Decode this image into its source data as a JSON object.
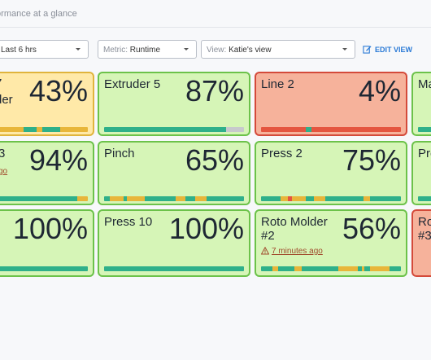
{
  "header": {
    "subtitle": "formance at a glance"
  },
  "filters": {
    "time_range": "Last 6 hrs",
    "metric_label": "Metric:",
    "metric_value": "Runtime",
    "view_label": "View:",
    "view_value": "Katie's view",
    "edit_view": "EDIT VIEW"
  },
  "colors": {
    "good": "#2fb08a",
    "warn": "#e8b63a",
    "bad": "#e4553f",
    "idle": "#c7c9cc",
    "link": "#2a7ad6"
  },
  "cards": [
    {
      "name": "der",
      "name_prefix": "",
      "pct": "43%",
      "status": "yellow"
    },
    {
      "name": "Extruder 5",
      "pct": "87%",
      "status": "green"
    },
    {
      "name": "Line 2",
      "pct": "4%",
      "status": "red"
    },
    {
      "name": "Ma",
      "pct": "",
      "status": "green"
    },
    {
      "name": "3",
      "pct": "94%",
      "status": "green",
      "ago": "go"
    },
    {
      "name": "Pinch",
      "pct": "65%",
      "status": "green"
    },
    {
      "name": "Press 2",
      "pct": "75%",
      "status": "green"
    },
    {
      "name": "Pre",
      "pct": "",
      "status": "green"
    },
    {
      "name": "",
      "pct": "100%",
      "status": "green"
    },
    {
      "name": "Press 10",
      "pct": "100%",
      "status": "green"
    },
    {
      "name": "Roto Molder #2",
      "name_line1": "Roto Molder",
      "name_line2": "#2",
      "pct": "56%",
      "status": "green",
      "ago": "7 minutes ago"
    },
    {
      "name": "Ro #3",
      "name_line1": "Ro",
      "name_line2": "#3",
      "pct": "",
      "status": "red"
    }
  ]
}
